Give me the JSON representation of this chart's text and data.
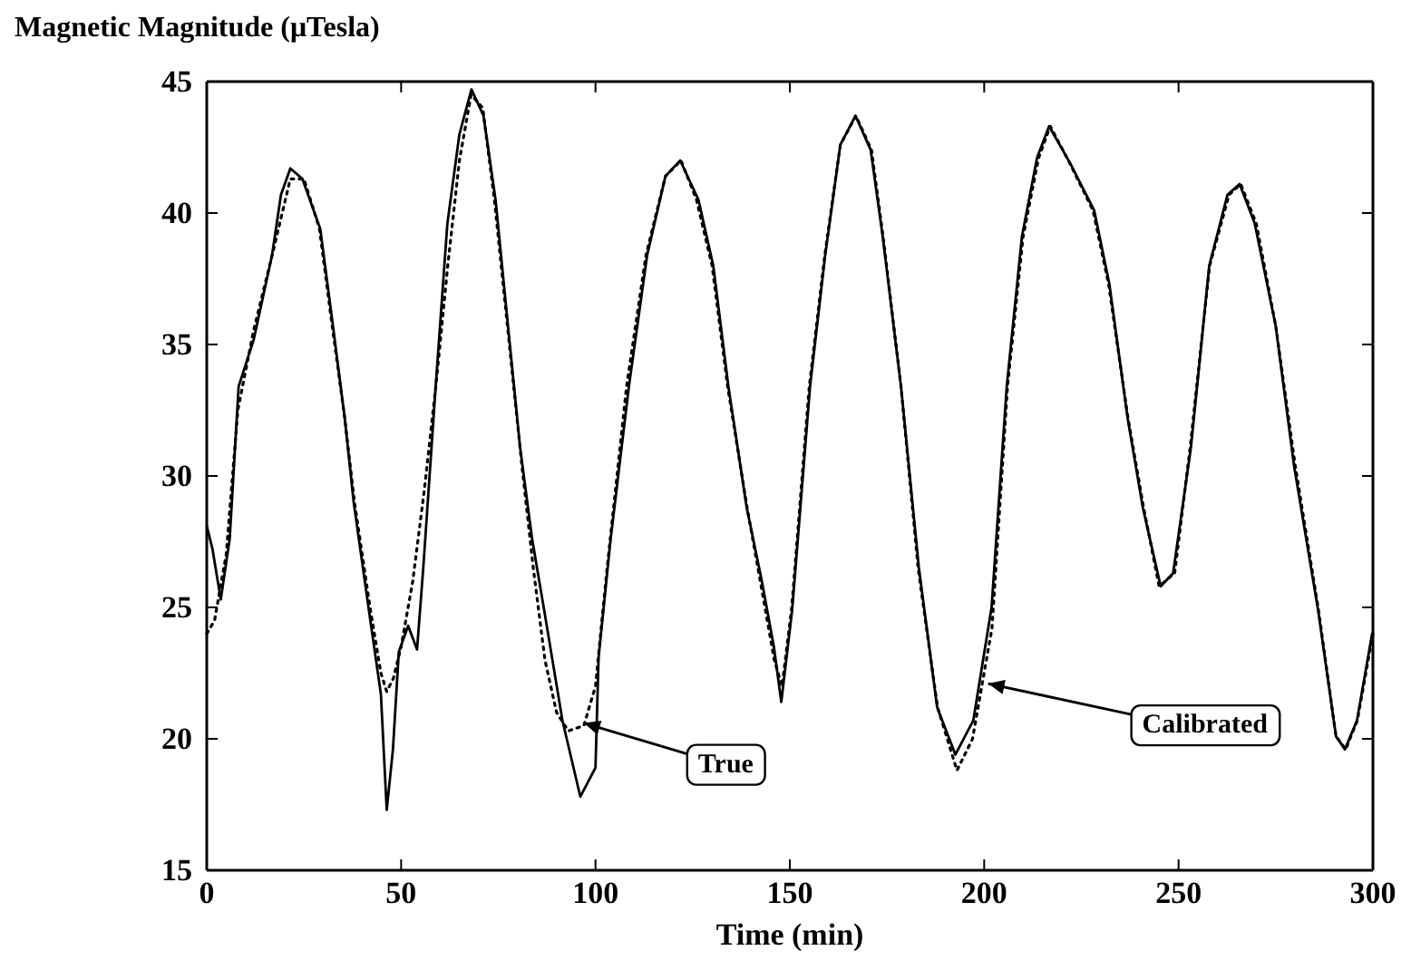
{
  "chart_data": {
    "type": "line",
    "ylabel": "Magnetic Magnitude (μTesla)",
    "xlabel": "Time (min)",
    "xlim": [
      0,
      300
    ],
    "xticks": [
      0,
      50,
      100,
      150,
      200,
      250,
      300
    ],
    "ylim": [
      15,
      45
    ],
    "yticks": [
      15,
      20,
      25,
      30,
      35,
      40,
      45
    ],
    "grid": false,
    "marker": "none",
    "series": [
      {
        "color": "#000000",
        "line_style": "solid",
        "x": [
          0,
          1.5,
          3.6,
          5.9,
          8.2,
          12.1,
          16.8,
          19.1,
          21.5,
          24.6,
          29.2,
          32.3,
          35.5,
          37.8,
          41.7,
          44.8,
          46.3,
          47.9,
          49.4,
          51.8,
          54.1,
          55.7,
          58.8,
          61.9,
          65,
          68.1,
          71.2,
          74.3,
          77.5,
          80.6,
          83.7,
          86.8,
          91.5,
          96.1,
          100,
          100.8,
          103.9,
          108.6,
          113.3,
          118,
          121.8,
          126.5,
          130.3,
          134.2,
          138.9,
          142.8,
          145.9,
          147.8,
          150.6,
          155.2,
          159.1,
          163,
          166.9,
          170.8,
          173.9,
          178.6,
          183.2,
          187.9,
          192.6,
          197.2,
          201.9,
          205.8,
          209.7,
          213.6,
          216.7,
          222.1,
          228.3,
          232.2,
          236.9,
          240.8,
          245.4,
          248.6,
          253.2,
          257.9,
          262.6,
          265.7,
          269.6,
          275,
          279.7,
          285.9,
          290.5,
          292.8,
          295.9,
          299.8
        ],
        "values": [
          28.1,
          27.2,
          25.3,
          27.6,
          33.4,
          35.2,
          38.4,
          40.7,
          41.7,
          41.3,
          39.4,
          35.9,
          32.2,
          29.0,
          24.9,
          21.7,
          17.3,
          19.6,
          23.3,
          24.3,
          23.4,
          26.5,
          33.2,
          39.6,
          43.0,
          44.7,
          43.7,
          40.5,
          35.7,
          31.1,
          27.6,
          24.9,
          20.7,
          17.8,
          18.9,
          23.1,
          27.6,
          33.4,
          38.4,
          41.4,
          42.0,
          40.5,
          38.0,
          33.4,
          28.8,
          26.0,
          23.5,
          21.4,
          24.9,
          33.4,
          38.4,
          42.6,
          43.7,
          42.4,
          39.1,
          33.4,
          26.5,
          21.2,
          19.4,
          20.7,
          25.0,
          33.4,
          39.1,
          42.1,
          43.3,
          41.9,
          40.1,
          37.3,
          32.2,
          28.8,
          25.8,
          26.3,
          31.1,
          38.0,
          40.7,
          41.1,
          39.6,
          35.7,
          30.4,
          24.9,
          20.1,
          19.6,
          20.7,
          24.0
        ]
      },
      {
        "color": "#000000",
        "line_style": "dotted",
        "x": [
          0,
          2,
          5,
          8,
          12,
          17,
          21.5,
          25,
          29,
          32,
          35.5,
          38,
          42,
          44.8,
          46.3,
          48,
          50,
          53,
          56,
          59,
          62,
          65,
          68,
          71,
          74,
          77.5,
          81,
          84,
          87,
          90,
          93,
          97,
          100,
          103,
          108,
          113,
          118,
          122,
          126,
          130,
          134,
          139,
          143,
          146,
          148,
          150.5,
          155,
          159,
          163,
          167,
          171,
          174,
          178.6,
          183,
          188,
          193,
          197,
          202,
          206,
          210,
          214,
          217,
          222,
          228,
          232,
          237,
          241,
          245,
          249,
          253,
          258,
          263,
          266,
          270,
          275,
          280,
          286,
          290.5,
          293,
          296,
          300
        ],
        "values": [
          24.0,
          24.5,
          27.0,
          32.5,
          35.5,
          38.5,
          41.3,
          41.3,
          39.4,
          36.0,
          32.2,
          29.0,
          25.0,
          22.5,
          21.8,
          22.3,
          23.5,
          26.0,
          29.5,
          33.5,
          38.0,
          42.0,
          44.5,
          44.0,
          40.5,
          35.5,
          30.5,
          26.5,
          23.0,
          21.0,
          20.3,
          20.5,
          22.0,
          26.5,
          33.4,
          38.4,
          41.4,
          42.0,
          40.5,
          38.0,
          33.4,
          28.8,
          25.5,
          23.0,
          22.0,
          25.0,
          33.4,
          38.4,
          42.6,
          43.7,
          42.4,
          39.1,
          33.4,
          26.5,
          21.2,
          18.8,
          20.0,
          24.2,
          33.4,
          39.1,
          42.1,
          43.3,
          41.9,
          40.1,
          37.3,
          32.2,
          28.8,
          25.8,
          26.3,
          31.1,
          38.0,
          40.7,
          41.1,
          39.6,
          35.7,
          30.4,
          24.9,
          20.1,
          19.6,
          20.7,
          24.0
        ]
      }
    ],
    "annotations": [
      {
        "text": "True",
        "x": 97,
        "y": 20.6
      },
      {
        "text": "Calibrated",
        "x": 201,
        "y": 22.1
      }
    ]
  }
}
